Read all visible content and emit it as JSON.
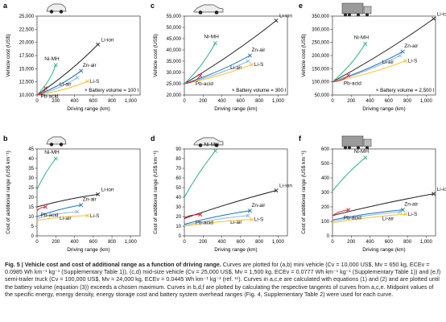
{
  "colors": {
    "Li-ion": "#222222",
    "Ni-MH": "#2fae7d",
    "Zn-air": "#1f6fb5",
    "Li-air": "#8fb7e0",
    "Li-S": "#f2c12e",
    "Pb-acid": "#d7263d"
  },
  "icons": {
    "a": "car-icon",
    "c": "sedan-icon",
    "e": "truck-icon",
    "b": "car-icon",
    "d": "sedan-icon",
    "f": "truck-icon"
  },
  "chart_data": [
    {
      "panel": "a",
      "type": "line",
      "xlabel": "Driving range (km)",
      "ylabel": "Vehicle cost (US$)",
      "xlim": [
        0,
        1100
      ],
      "ylim": [
        10000,
        25000
      ],
      "xticks": [
        "0",
        "200",
        "400",
        "600",
        "800",
        "1,000"
      ],
      "yticks": [
        "10,000",
        "12,500",
        "15,000",
        "17,500",
        "20,000",
        "22,500",
        "25,000"
      ],
      "annotation": "× Battery volume = 100 l",
      "series": [
        {
          "name": "Li-ion",
          "x": [
            0,
            650
          ],
          "y": [
            10000,
            19600
          ]
        },
        {
          "name": "Ni-MH",
          "x": [
            0,
            200
          ],
          "y": [
            10000,
            15700
          ]
        },
        {
          "name": "Zn-air",
          "x": [
            0,
            470
          ],
          "y": [
            10000,
            14600
          ]
        },
        {
          "name": "Li-air",
          "x": [
            0,
            430
          ],
          "y": [
            10000,
            13300
          ]
        },
        {
          "name": "Li-S",
          "x": [
            0,
            540
          ],
          "y": [
            10000,
            12600
          ]
        },
        {
          "name": "Pb-acid",
          "x": [
            0,
            90
          ],
          "y": [
            10000,
            11300
          ]
        }
      ]
    },
    {
      "panel": "c",
      "type": "line",
      "xlabel": "Driving range (km)",
      "ylabel": "Vehicle cost (US$)",
      "xlim": [
        0,
        1100
      ],
      "ylim": [
        20000,
        55000
      ],
      "xticks": [
        "0",
        "200",
        "400",
        "600",
        "800",
        "1,000"
      ],
      "yticks": [
        "20,000",
        "25,000",
        "30,000",
        "35,000",
        "40,000",
        "45,000",
        "50,000",
        "55,000"
      ],
      "annotation": "× Battery volume = 300 l",
      "series": [
        {
          "name": "Li-ion",
          "x": [
            0,
            980
          ],
          "y": [
            25000,
            53000
          ]
        },
        {
          "name": "Ni-MH",
          "x": [
            0,
            330
          ],
          "y": [
            25000,
            43000
          ]
        },
        {
          "name": "Zn-air",
          "x": [
            0,
            700
          ],
          "y": [
            25000,
            37500
          ]
        },
        {
          "name": "Li-air",
          "x": [
            0,
            680
          ],
          "y": [
            25000,
            35000
          ]
        },
        {
          "name": "Li-S",
          "x": [
            0,
            720
          ],
          "y": [
            25000,
            33500
          ]
        },
        {
          "name": "Pb-acid",
          "x": [
            0,
            170
          ],
          "y": [
            25000,
            28500
          ]
        }
      ]
    },
    {
      "panel": "e",
      "type": "line",
      "xlabel": "Driving range (km)",
      "ylabel": "Vehicle cost (US$)",
      "xlim": [
        0,
        1100
      ],
      "ylim": [
        50000,
        350000
      ],
      "xticks": [
        "0",
        "200",
        "400",
        "600",
        "800",
        "1,000"
      ],
      "yticks": [
        "50,000",
        "100,000",
        "150,000",
        "200,000",
        "250,000",
        "300,000",
        "350,000"
      ],
      "annotation": "× Battery volume = 2,500 l",
      "series": [
        {
          "name": "Li-ion",
          "x": [
            0,
            1080
          ],
          "y": [
            100000,
            340000
          ]
        },
        {
          "name": "Ni-MH",
          "x": [
            0,
            350
          ],
          "y": [
            100000,
            245000
          ]
        },
        {
          "name": "Zn-air",
          "x": [
            0,
            750
          ],
          "y": [
            100000,
            215000
          ]
        },
        {
          "name": "Li-air",
          "x": [
            0,
            720
          ],
          "y": [
            100000,
            200000
          ]
        },
        {
          "name": "Li-S",
          "x": [
            0,
            780
          ],
          "y": [
            100000,
            180000
          ]
        },
        {
          "name": "Pb-acid",
          "x": [
            0,
            170
          ],
          "y": [
            100000,
            125000
          ]
        }
      ]
    },
    {
      "panel": "b",
      "type": "line",
      "xlabel": "Driving range (km)",
      "ylabel": "Cost of additional range (US$ km⁻¹)",
      "xlim": [
        0,
        1100
      ],
      "ylim": [
        0,
        45
      ],
      "xticks": [
        "0",
        "200",
        "400",
        "600",
        "800",
        "1,000"
      ],
      "yticks": [
        "0",
        "5",
        "10",
        "15",
        "20",
        "25",
        "30",
        "35",
        "40",
        "45"
      ],
      "series": [
        {
          "name": "Li-ion",
          "x": [
            0,
            650
          ],
          "y": [
            15,
            21.5
          ]
        },
        {
          "name": "Ni-MH",
          "x": [
            0,
            200
          ],
          "y": [
            24,
            40
          ]
        },
        {
          "name": "Zn-air",
          "x": [
            0,
            470
          ],
          "y": [
            10,
            16
          ]
        },
        {
          "name": "Li-air",
          "x": [
            0,
            430
          ],
          "y": [
            9,
            12.5
          ]
        },
        {
          "name": "Li-S",
          "x": [
            0,
            540
          ],
          "y": [
            8,
            10.5
          ]
        },
        {
          "name": "Pb-acid",
          "x": [
            0,
            90
          ],
          "y": [
            13,
            15
          ]
        }
      ]
    },
    {
      "panel": "d",
      "type": "line",
      "xlabel": "Driving range (km)",
      "ylabel": "Cost of additional range (US$ km⁻¹)",
      "xlim": [
        0,
        1100
      ],
      "ylim": [
        0,
        90
      ],
      "xticks": [
        "0",
        "200",
        "400",
        "600",
        "800",
        "1,000"
      ],
      "yticks": [
        "0",
        "10",
        "20",
        "30",
        "40",
        "50",
        "60",
        "70",
        "80",
        "90"
      ],
      "series": [
        {
          "name": "Li-ion",
          "x": [
            0,
            980
          ],
          "y": [
            18,
            47
          ]
        },
        {
          "name": "Ni-MH",
          "x": [
            0,
            330
          ],
          "y": [
            40,
            88
          ]
        },
        {
          "name": "Zn-air",
          "x": [
            0,
            700
          ],
          "y": [
            12,
            26
          ]
        },
        {
          "name": "Li-air",
          "x": [
            0,
            680
          ],
          "y": [
            11,
            21
          ]
        },
        {
          "name": "Li-S",
          "x": [
            0,
            720
          ],
          "y": [
            10,
            17
          ]
        },
        {
          "name": "Pb-acid",
          "x": [
            0,
            170
          ],
          "y": [
            19,
            22
          ]
        }
      ]
    },
    {
      "panel": "f",
      "type": "line",
      "xlabel": "Driving range (km)",
      "ylabel": "Cost of additional range (US$ km⁻¹)",
      "xlim": [
        0,
        1100
      ],
      "ylim": [
        0,
        600
      ],
      "xticks": [
        "0",
        "200",
        "400",
        "600",
        "800",
        "1,000"
      ],
      "yticks": [
        "0",
        "100",
        "200",
        "300",
        "400",
        "500",
        "600"
      ],
      "series": [
        {
          "name": "Li-ion",
          "x": [
            0,
            1080
          ],
          "y": [
            140,
            290
          ]
        },
        {
          "name": "Ni-MH",
          "x": [
            0,
            350
          ],
          "y": [
            310,
            540
          ]
        },
        {
          "name": "Zn-air",
          "x": [
            0,
            750
          ],
          "y": [
            110,
            180
          ]
        },
        {
          "name": "Li-air",
          "x": [
            0,
            720
          ],
          "y": [
            100,
            165
          ]
        },
        {
          "name": "Li-S",
          "x": [
            0,
            780
          ],
          "y": [
            90,
            150
          ]
        },
        {
          "name": "Pb-acid",
          "x": [
            0,
            170
          ],
          "y": [
            140,
            180
          ]
        }
      ]
    }
  ],
  "caption": {
    "figure_label": "Fig. 5 | Vehicle cost and cost of additional range as a function of driving range.",
    "text": "Curves are plotted for (a,b) mini vehicle (Cv = 10,000 US$, Mv = 650 kg, ECEv = 0.0985 Wh km⁻¹ kg⁻¹ (Supplementary Table 1)), (c,d) mid-size vehicle (Cv = 25,000 US$, Mv = 1,500 kg, ECEv = 0.0777 Wh km⁻¹ kg⁻¹ (Supplementary Table 1)) and (e,f) semi-trailer truck (Cv = 100,000 US$, Mv = 24,000 kg, ECEv = 0.0445 Wh km⁻¹ kg⁻¹ (ref. ¹¹). Curves in a,c,e are calculated with equations (1) and (2) and are plotted until the battery volume (equation (3)) exceeds a chosen maximum. Curves in b,d,f are plotted by calculating the respective tangents of curves from a,c,e. Midpoint values of the specific energy, energy density, energy storage cost and battery system overhead ranges (Fig. 4, Supplementary Table 2) were used for each curve."
  }
}
